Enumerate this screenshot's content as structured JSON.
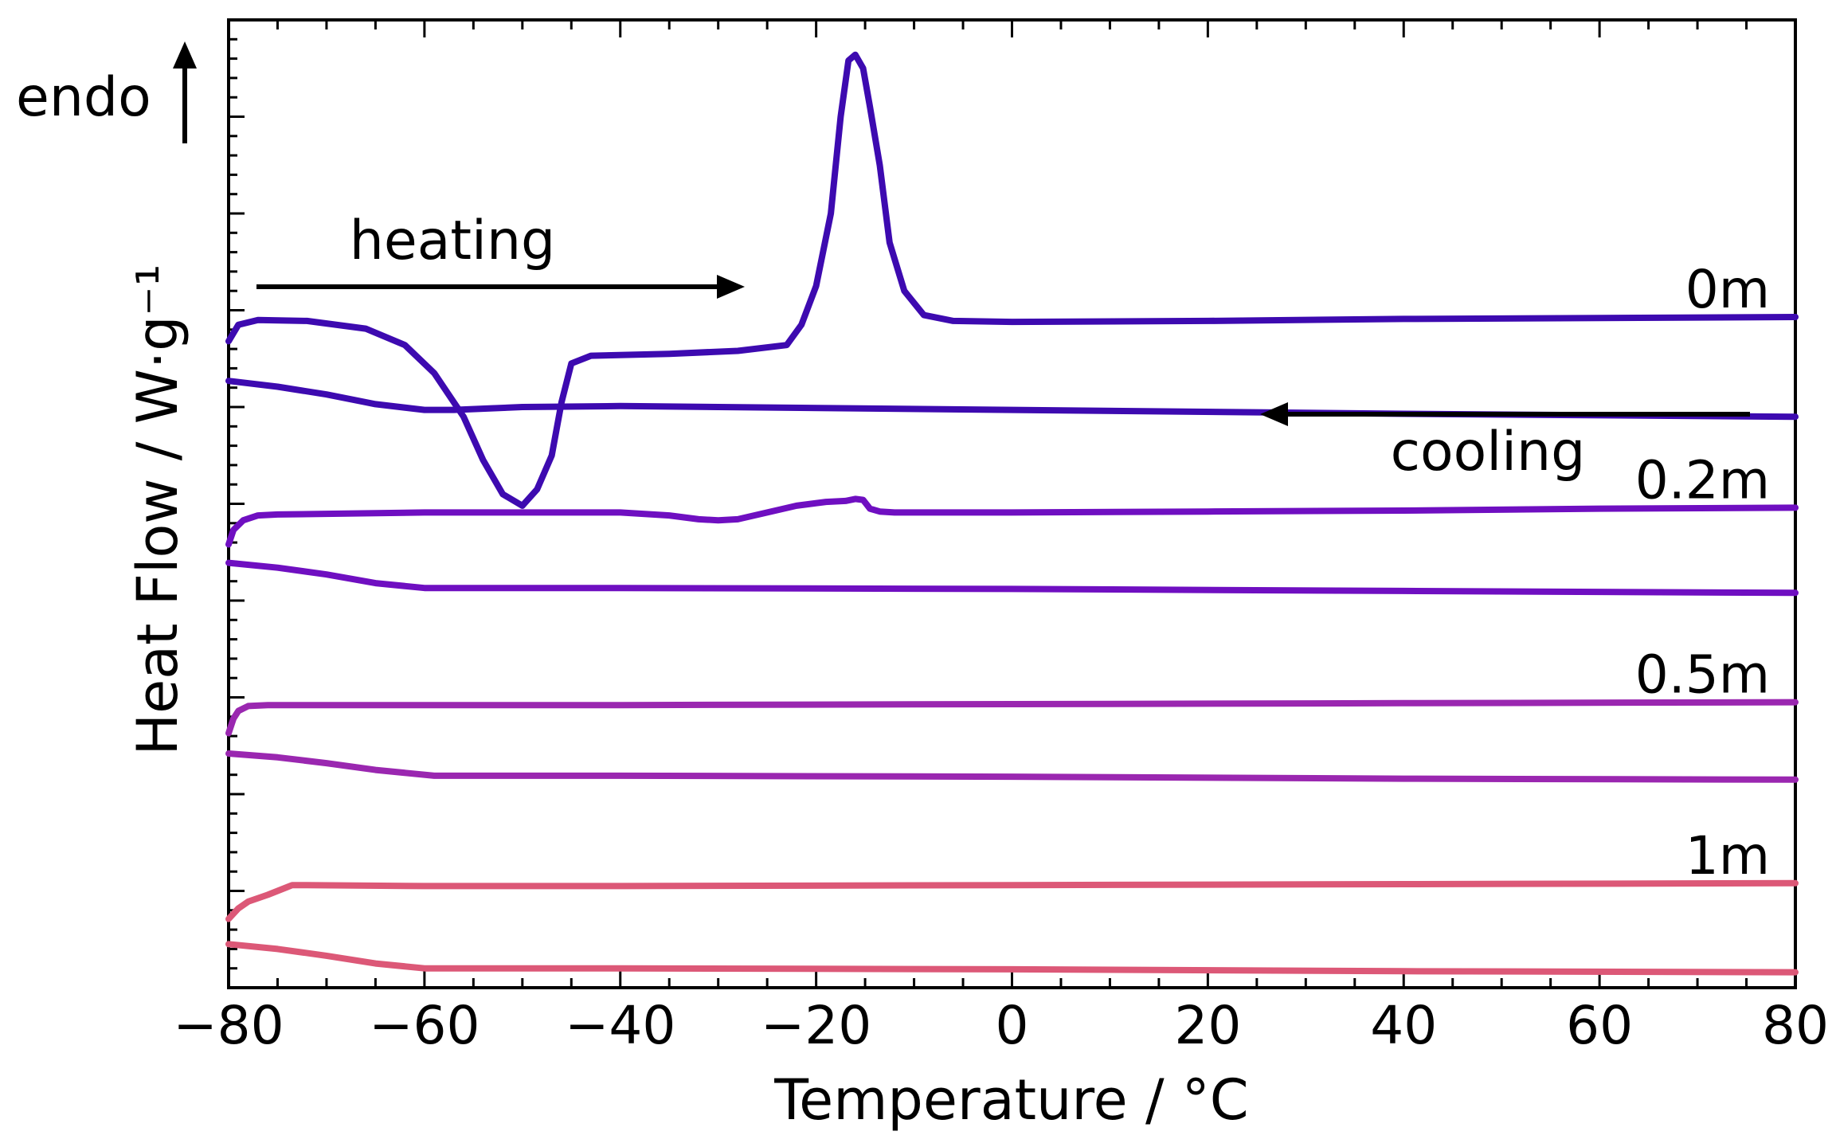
{
  "chart_data": {
    "type": "line",
    "title": "",
    "xlabel": "Temperature / °C",
    "ylabel": "Heat Flow / W·g⁻¹",
    "xlim": [
      -80,
      80
    ],
    "ylim": [
      0,
      100
    ],
    "xticks": [
      -80,
      -60,
      -40,
      -20,
      0,
      20,
      40,
      60,
      80
    ],
    "xtick_labels": [
      "−80",
      "−60",
      "−40",
      "−20",
      "0",
      "20",
      "40",
      "60",
      "80"
    ],
    "y_tick_labels_shown": false,
    "grid": false,
    "annotations": {
      "endo": "endo",
      "heating": "heating",
      "cooling": "cooling"
    },
    "series": [
      {
        "name": "0m",
        "color": "#3d0ab0",
        "heating": {
          "x": [
            -80,
            -79,
            -77,
            -72,
            -66,
            -62,
            -59,
            -56,
            -54,
            -52,
            -50,
            -48.5,
            -47,
            -46,
            -45,
            -43,
            -35,
            -28,
            -23,
            -21.5,
            -20,
            -18.5,
            -17.5,
            -16.7,
            -16,
            -15.2,
            -14.5,
            -13.5,
            -12.5,
            -11,
            -9,
            -6,
            0,
            20,
            40,
            60,
            80
          ],
          "y": [
            66.8,
            68.5,
            69,
            68.9,
            68.1,
            66.4,
            63.5,
            59,
            54.5,
            51,
            49.8,
            51.5,
            55,
            60.5,
            64.5,
            65.3,
            65.5,
            65.8,
            66.4,
            68.5,
            72.5,
            80,
            90,
            95.8,
            96.4,
            95,
            91,
            85,
            77,
            72,
            69.5,
            68.9,
            68.8,
            68.9,
            69.1,
            69.2,
            69.3
          ]
        },
        "cooling": {
          "x": [
            -80,
            -75,
            -70,
            -65,
            -60,
            -57,
            -50,
            -40,
            0,
            40,
            80
          ],
          "y": [
            62.7,
            62.1,
            61.3,
            60.3,
            59.7,
            59.7,
            60,
            60.1,
            59.7,
            59.3,
            59.0
          ]
        }
      },
      {
        "name": "0.2m",
        "color": "#6f0fc1",
        "heating": {
          "x": [
            -80,
            -79.5,
            -78.5,
            -77,
            -75,
            -60,
            -40,
            -35,
            -32,
            -30,
            -28,
            -25,
            -22,
            -19,
            -17,
            -16,
            -15.2,
            -14.5,
            -13.5,
            -12,
            -5,
            0,
            20,
            40,
            60,
            80
          ],
          "y": [
            45.8,
            47.3,
            48.3,
            48.8,
            48.9,
            49.1,
            49.1,
            48.8,
            48.4,
            48.3,
            48.4,
            49.1,
            49.8,
            50.2,
            50.3,
            50.5,
            50.4,
            49.5,
            49.2,
            49.1,
            49.1,
            49.1,
            49.2,
            49.3,
            49.5,
            49.6
          ]
        },
        "cooling": {
          "x": [
            -80,
            -75,
            -70,
            -65,
            -60,
            -50,
            -40,
            0,
            40,
            80
          ],
          "y": [
            43.9,
            43.4,
            42.7,
            41.8,
            41.3,
            41.3,
            41.3,
            41.2,
            41.0,
            40.8
          ]
        }
      },
      {
        "name": "0.5m",
        "color": "#9a27b0",
        "heating": {
          "x": [
            -80,
            -79.5,
            -79,
            -78,
            -76,
            -60,
            -40,
            0,
            40,
            80
          ],
          "y": [
            26.3,
            27.8,
            28.6,
            29.1,
            29.2,
            29.2,
            29.2,
            29.3,
            29.4,
            29.5
          ]
        },
        "cooling": {
          "x": [
            -80,
            -75,
            -70,
            -65,
            -59,
            -50,
            -40,
            0,
            40,
            80
          ],
          "y": [
            24.2,
            23.8,
            23.2,
            22.5,
            21.9,
            21.9,
            21.9,
            21.8,
            21.6,
            21.5
          ]
        }
      },
      {
        "name": "1m",
        "color": "#dc5877",
        "heating": {
          "x": [
            -80,
            -79,
            -78,
            -76,
            -74,
            -73.5,
            -72,
            -60,
            -40,
            0,
            40,
            80
          ],
          "y": [
            7.1,
            8.2,
            8.9,
            9.6,
            10.4,
            10.6,
            10.6,
            10.5,
            10.5,
            10.6,
            10.7,
            10.8
          ]
        },
        "cooling": {
          "x": [
            -80,
            -75,
            -70,
            -65,
            -60,
            -50,
            -40,
            0,
            40,
            80
          ],
          "y": [
            4.5,
            4.0,
            3.3,
            2.5,
            2.0,
            2.0,
            2.0,
            1.9,
            1.7,
            1.6
          ]
        }
      }
    ]
  }
}
